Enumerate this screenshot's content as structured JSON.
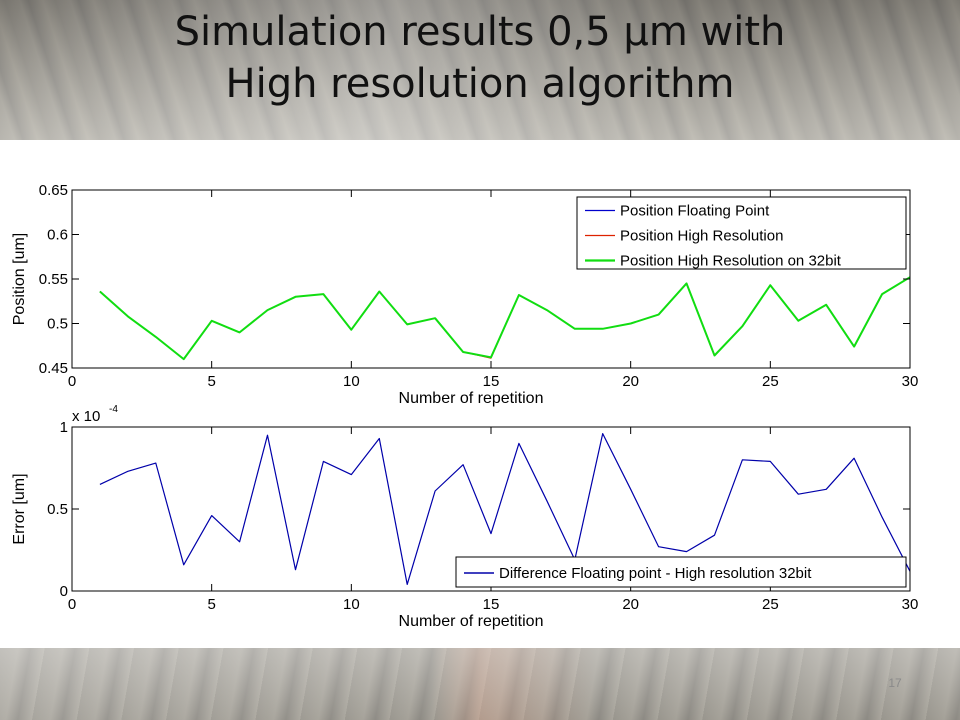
{
  "slide": {
    "title_line1": "Simulation results 0,5 µm with",
    "title_line2": "High resolution algorithm",
    "page_number": "17"
  },
  "chart_data": [
    {
      "type": "line",
      "xlabel": "Number of repetition",
      "ylabel": "Position [um]",
      "xlim": [
        0,
        30
      ],
      "ylim": [
        0.45,
        0.65
      ],
      "xticks": [
        0,
        5,
        10,
        15,
        20,
        25,
        30
      ],
      "yticks": [
        0.45,
        0.5,
        0.55,
        0.6,
        0.65
      ],
      "ytick_labels": [
        "0.45",
        "0.5",
        "0.55",
        "0.6",
        "0.65"
      ],
      "grid": false,
      "legend": "top-right",
      "x": [
        1,
        2,
        3,
        4,
        5,
        6,
        7,
        8,
        9,
        10,
        11,
        12,
        13,
        14,
        15,
        16,
        17,
        18,
        19,
        20,
        21,
        22,
        23,
        24,
        25,
        26,
        27,
        28,
        29,
        30
      ],
      "series": [
        {
          "name": "Position Floating Point",
          "color": "#0000cc",
          "width": 1,
          "values": [
            0.536,
            0.508,
            0.485,
            0.46,
            0.503,
            0.49,
            0.515,
            0.53,
            0.533,
            0.493,
            0.536,
            0.499,
            0.506,
            0.468,
            0.462,
            0.532,
            0.515,
            0.494,
            0.494,
            0.5,
            0.51,
            0.545,
            0.464,
            0.497,
            0.543,
            0.503,
            0.521,
            0.474,
            0.533,
            0.552
          ]
        },
        {
          "name": "Position High Resolution",
          "color": "#dd2200",
          "width": 1,
          "values": [
            0.536,
            0.508,
            0.485,
            0.46,
            0.503,
            0.49,
            0.515,
            0.53,
            0.533,
            0.493,
            0.536,
            0.499,
            0.506,
            0.468,
            0.461,
            0.532,
            0.515,
            0.494,
            0.494,
            0.5,
            0.51,
            0.545,
            0.464,
            0.497,
            0.543,
            0.503,
            0.521,
            0.474,
            0.533,
            0.552
          ]
        },
        {
          "name": "Position High Resolution on 32bit",
          "color": "#11dd11",
          "width": 2,
          "values": [
            0.536,
            0.508,
            0.485,
            0.46,
            0.503,
            0.49,
            0.515,
            0.53,
            0.533,
            0.493,
            0.536,
            0.499,
            0.506,
            0.468,
            0.462,
            0.532,
            0.515,
            0.494,
            0.494,
            0.5,
            0.51,
            0.545,
            0.464,
            0.497,
            0.543,
            0.503,
            0.521,
            0.474,
            0.533,
            0.552
          ]
        }
      ]
    },
    {
      "type": "line",
      "xlabel": "Number of repetition",
      "ylabel": "Error [um]",
      "scale_label": "x 10",
      "scale_exponent": "-4",
      "xlim": [
        0,
        30
      ],
      "ylim": [
        0,
        1
      ],
      "xticks": [
        0,
        5,
        10,
        15,
        20,
        25,
        30
      ],
      "yticks": [
        0,
        0.5,
        1
      ],
      "ytick_labels": [
        "0",
        "0.5",
        "1"
      ],
      "grid": false,
      "legend": "bottom-right",
      "x": [
        1,
        2,
        3,
        4,
        5,
        6,
        7,
        8,
        9,
        10,
        11,
        12,
        13,
        14,
        15,
        16,
        17,
        18,
        19,
        20,
        21,
        22,
        23,
        24,
        25,
        26,
        27,
        28,
        29,
        30
      ],
      "series": [
        {
          "name": "Difference Floating point - High resolution 32bit",
          "color": "#0000aa",
          "width": 1.2,
          "values": [
            0.65,
            0.73,
            0.78,
            0.16,
            0.46,
            0.3,
            0.95,
            0.13,
            0.79,
            0.71,
            0.93,
            0.04,
            0.61,
            0.77,
            0.35,
            0.9,
            0.55,
            0.19,
            0.96,
            0.62,
            0.27,
            0.24,
            0.34,
            0.8,
            0.79,
            0.59,
            0.62,
            0.81,
            0.45,
            0.12
          ]
        }
      ]
    }
  ]
}
